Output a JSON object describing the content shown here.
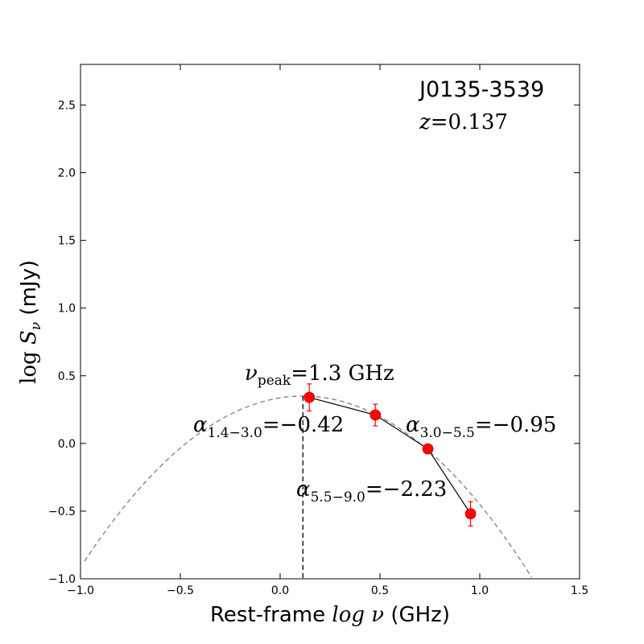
{
  "chart_data": {
    "type": "line",
    "source_name": "J0135-3539",
    "redshift": {
      "symbol": "z",
      "value": "0.137"
    },
    "xlabel": {
      "prefix": "Rest-frame ",
      "math": "log ν",
      "suffix": " (GHz)"
    },
    "ylabel": {
      "prefix": "log ",
      "math": "S",
      "sub": "ν",
      "suffix": " (mJy)"
    },
    "xlim": [
      -1.0,
      1.5
    ],
    "ylim": [
      -1.0,
      2.8
    ],
    "xticks": [
      "−1.0",
      "−0.5",
      "0.0",
      "0.5",
      "1.0",
      "1.5"
    ],
    "xtick_values": [
      -1.0,
      -0.5,
      0.0,
      0.5,
      1.0,
      1.5
    ],
    "yticks": [
      "−1.0",
      "−0.5",
      "0.0",
      "0.5",
      "1.0",
      "1.5",
      "2.0",
      "2.5"
    ],
    "ytick_values": [
      -1.0,
      -0.5,
      0.0,
      0.5,
      1.0,
      1.5,
      2.0,
      2.5
    ],
    "grid": false,
    "series": [
      {
        "kind": "measurements",
        "color": "#ff0000",
        "x": [
          0.146,
          0.477,
          0.74,
          0.954
        ],
        "y": [
          0.34,
          0.21,
          -0.04,
          -0.52
        ],
        "yerr": [
          0.1,
          0.08,
          0.03,
          0.09
        ]
      },
      {
        "kind": "parabolic-fit",
        "color": "#808080",
        "coefficients": {
          "peak_x": 0.114,
          "peak_y": 0.35,
          "curvature": -1.02
        }
      }
    ],
    "peak_line_x": 0.114,
    "annotations": {
      "peak": {
        "symbol": "ν",
        "sub": "peak",
        "text": "=1.3 GHz"
      },
      "alpha1": {
        "symbol": "α",
        "sub": "1.4−3.0",
        "text": "=−0.42"
      },
      "alpha2": {
        "symbol": "α",
        "sub": "3.0−5.5",
        "text": "=−0.95"
      },
      "alpha3": {
        "symbol": "α",
        "sub": "5.5−9.0",
        "text": "=−2.23"
      }
    }
  }
}
